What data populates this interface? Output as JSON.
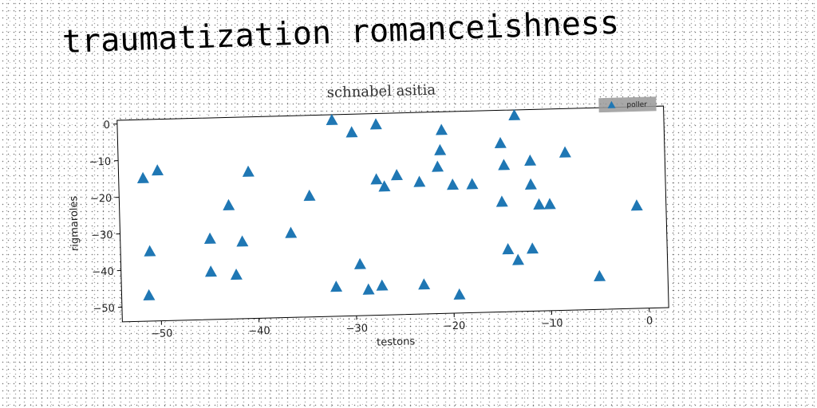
{
  "page": {
    "title": "traumatization romanceishness"
  },
  "colors": {
    "marker": "#1f77b4",
    "legend_bg": "#999999"
  },
  "chart_data": {
    "type": "scatter",
    "title": "schnabel asitia",
    "xlabel": "testons",
    "ylabel": "rigmaroles",
    "xlim": [
      -54,
      2
    ],
    "ylim": [
      -54,
      1
    ],
    "xticks": [
      -50,
      -40,
      -30,
      -20,
      -10,
      0
    ],
    "yticks": [
      0,
      -10,
      -20,
      -30,
      -40,
      -50
    ],
    "grid": false,
    "legend_position": "top-right",
    "marker": "triangle-up",
    "series": [
      {
        "name": "poller",
        "points": [
          [
            -51.5,
            -15
          ],
          [
            -50,
            -13
          ],
          [
            -51,
            -35
          ],
          [
            -51.2,
            -47
          ],
          [
            -44.8,
            -32
          ],
          [
            -44.8,
            -41
          ],
          [
            -42.8,
            -23
          ],
          [
            -42.2,
            -42
          ],
          [
            -41.5,
            -33
          ],
          [
            -40.7,
            -14
          ],
          [
            -36.5,
            -31
          ],
          [
            -34.5,
            -21
          ],
          [
            -32,
            -0.5
          ],
          [
            -32,
            -46
          ],
          [
            -30,
            -4
          ],
          [
            -29.5,
            -40
          ],
          [
            -28.7,
            -47
          ],
          [
            -27.5,
            -2
          ],
          [
            -27.6,
            -17
          ],
          [
            -27.3,
            -46
          ],
          [
            -26.8,
            -19
          ],
          [
            -25.5,
            -16
          ],
          [
            -23.2,
            -18
          ],
          [
            -23,
            -46
          ],
          [
            -21.3,
            -14
          ],
          [
            -21,
            -9.5
          ],
          [
            -20.8,
            -4
          ],
          [
            -19.8,
            -19
          ],
          [
            -19.4,
            -49
          ],
          [
            -17.8,
            -19
          ],
          [
            -14.8,
            -8
          ],
          [
            -14.8,
            -24
          ],
          [
            -14.5,
            -14
          ],
          [
            -14.3,
            -37
          ],
          [
            -13.3,
            -0.5
          ],
          [
            -13.3,
            -40
          ],
          [
            -11.8,
            -13
          ],
          [
            -11.8,
            -19.5
          ],
          [
            -11.8,
            -37
          ],
          [
            -11,
            -25
          ],
          [
            -9.9,
            -25
          ],
          [
            -8.2,
            -11
          ],
          [
            -5,
            -45
          ],
          [
            -1,
            -26
          ]
        ]
      }
    ]
  }
}
